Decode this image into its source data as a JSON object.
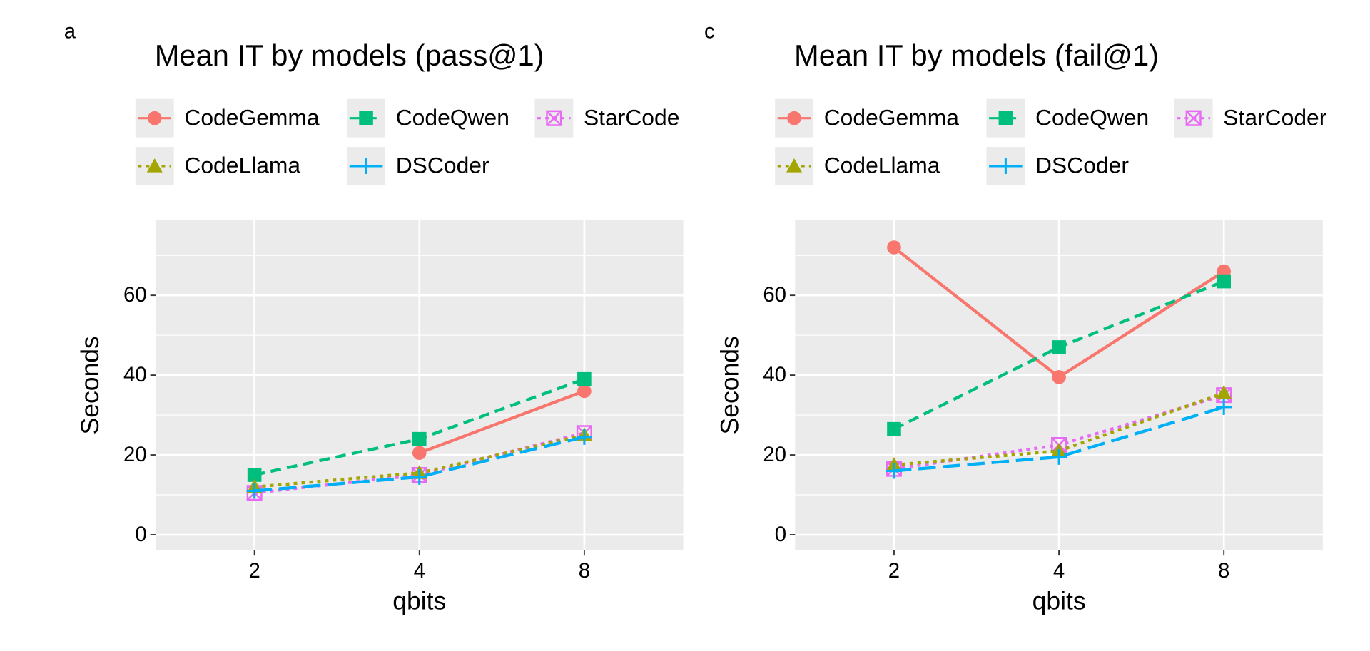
{
  "chart_data": [
    {
      "type": "line",
      "panel_label": "a",
      "title": "Mean IT by models (pass@1)",
      "xlabel": "qbits",
      "ylabel": "Seconds",
      "categories": [
        "2",
        "4",
        "8"
      ],
      "ylim": [
        -3.9,
        78.8
      ],
      "yticks": [
        0,
        20,
        40,
        60
      ],
      "grid": true,
      "series": [
        {
          "name": "CodeGemma",
          "color": "#F8766D",
          "shape": "circle",
          "linetype": "solid",
          "values": [
            null,
            20.5,
            36
          ]
        },
        {
          "name": "CodeQwen",
          "color": "#00BF7D",
          "shape": "square",
          "linetype": "dashed",
          "values": [
            15,
            24,
            39
          ]
        },
        {
          "name": "StarCode",
          "color": "#E76BF3",
          "shape": "boxcross",
          "linetype": "dotted",
          "values": [
            10.5,
            15,
            25.5
          ]
        },
        {
          "name": "CodeLlama",
          "color": "#A3A500",
          "shape": "triangle",
          "linetype": "dotted",
          "values": [
            12,
            15.5,
            25
          ]
        },
        {
          "name": "DSCoder",
          "color": "#00B0F6",
          "shape": "plus",
          "linetype": "longdash",
          "values": [
            11,
            14.5,
            24.5
          ]
        }
      ]
    },
    {
      "type": "line",
      "panel_label": "c",
      "title": "Mean IT by models (fail@1)",
      "xlabel": "qbits",
      "ylabel": "Seconds",
      "categories": [
        "2",
        "4",
        "8"
      ],
      "ylim": [
        -3.9,
        78.8
      ],
      "yticks": [
        0,
        20,
        40,
        60
      ],
      "grid": true,
      "series": [
        {
          "name": "CodeGemma",
          "color": "#F8766D",
          "shape": "circle",
          "linetype": "solid",
          "values": [
            72,
            39.5,
            66
          ]
        },
        {
          "name": "CodeQwen",
          "color": "#00BF7D",
          "shape": "square",
          "linetype": "dashed",
          "values": [
            26.5,
            47,
            63.5
          ]
        },
        {
          "name": "StarCoder",
          "color": "#E76BF3",
          "shape": "boxcross",
          "linetype": "dotted",
          "values": [
            16.5,
            22.5,
            35
          ]
        },
        {
          "name": "CodeLlama",
          "color": "#A3A500",
          "shape": "triangle",
          "linetype": "dotted",
          "values": [
            17.5,
            21,
            35.5
          ]
        },
        {
          "name": "DSCoder",
          "color": "#00B0F6",
          "shape": "plus",
          "linetype": "longdash",
          "values": [
            16,
            19.5,
            32
          ]
        }
      ]
    }
  ]
}
